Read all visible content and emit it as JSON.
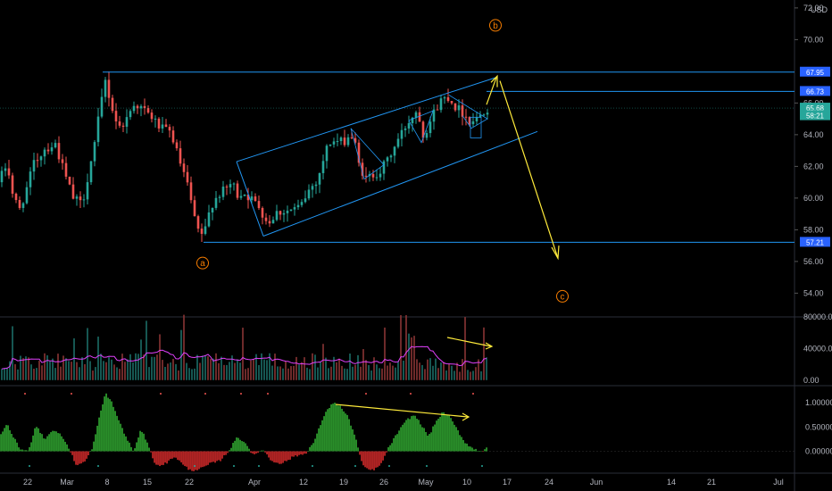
{
  "price_axis": {
    "currency": "USD"
  },
  "chart_data": [
    {
      "type": "candlestick",
      "name": "price",
      "ylim": [
        52.5,
        72.5
      ],
      "y_ticks": [
        "72.00",
        "70.00",
        "66.00",
        "64.00",
        "62.00",
        "60.00",
        "58.00",
        "56.00",
        "54.00"
      ],
      "x_ticks": [
        "22",
        "Mar",
        "8",
        "15",
        "22",
        "Apr",
        "12",
        "19",
        "26",
        "May",
        "10",
        "17",
        "24",
        "Jun",
        "14",
        "21",
        "Jul"
      ],
      "price_tags": [
        {
          "label": "67.95",
          "value": 67.95,
          "color": "#2962ff"
        },
        {
          "label": "66.73",
          "value": 66.73,
          "color": "#2962ff"
        },
        {
          "label": "65.68",
          "value": 65.68,
          "color": "#26a69a"
        },
        {
          "label": "58:21",
          "value": 65.2,
          "color": "#26a69a"
        },
        {
          "label": "57.21",
          "value": 57.21,
          "color": "#2962ff"
        }
      ],
      "horizontal_levels": [
        67.95,
        66.73,
        57.21
      ],
      "wave_labels": [
        {
          "label": "a",
          "value": 55.9
        },
        {
          "label": "b",
          "value": 70.9
        },
        {
          "label": "c",
          "value": 53.8
        }
      ],
      "color_up": "#26a69a",
      "color_down": "#ef5350",
      "line_color": "#2196f3",
      "projection_color": "#ffeb3b"
    },
    {
      "type": "bar",
      "name": "volume",
      "ylim": [
        -7000,
        80000
      ],
      "y_ticks": [
        "80000.00",
        "40000.00",
        "0.00"
      ],
      "ma_color": "#e040fb"
    },
    {
      "type": "histogram",
      "name": "oscillator",
      "ylim": [
        -0.45,
        1.35
      ],
      "y_ticks": [
        "1.00000",
        "0.50000",
        "0.00000"
      ],
      "color_pos": "#2e9e2e",
      "color_neg": "#c62828"
    }
  ]
}
